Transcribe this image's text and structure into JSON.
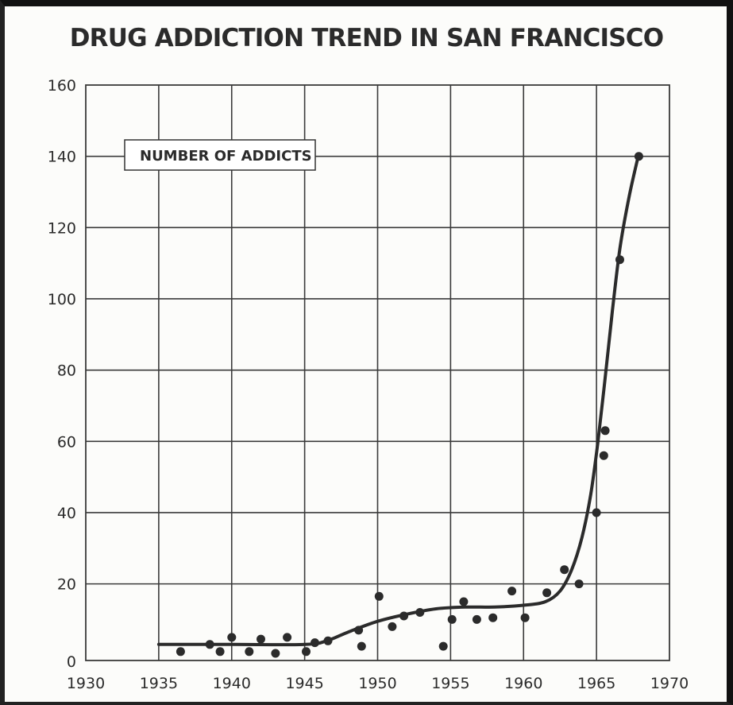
{
  "chart_data": {
    "type": "scatter",
    "title": "DRUG ADDICTION TREND IN SAN FRANCISCO",
    "legend_label": "NUMBER OF ADDICTS",
    "xlabel": "",
    "ylabel": "",
    "xlim": [
      1930,
      1970
    ],
    "ylim": [
      0,
      160
    ],
    "x_ticks": [
      1930,
      1935,
      1940,
      1945,
      1950,
      1955,
      1960,
      1965,
      1970
    ],
    "y_ticks": [
      0,
      20,
      40,
      60,
      80,
      100,
      120,
      140,
      160
    ],
    "grid": true,
    "points": [
      {
        "x": 1936.5,
        "y": 1
      },
      {
        "x": 1938.5,
        "y": 3
      },
      {
        "x": 1939.2,
        "y": 1
      },
      {
        "x": 1940.0,
        "y": 5
      },
      {
        "x": 1941.2,
        "y": 1
      },
      {
        "x": 1942.0,
        "y": 4.5
      },
      {
        "x": 1943.0,
        "y": 0.5
      },
      {
        "x": 1943.8,
        "y": 5
      },
      {
        "x": 1945.1,
        "y": 1
      },
      {
        "x": 1945.7,
        "y": 3.5
      },
      {
        "x": 1946.6,
        "y": 4
      },
      {
        "x": 1948.7,
        "y": 7
      },
      {
        "x": 1948.9,
        "y": 2.5
      },
      {
        "x": 1950.1,
        "y": 16.5
      },
      {
        "x": 1951.0,
        "y": 8
      },
      {
        "x": 1951.8,
        "y": 11
      },
      {
        "x": 1952.9,
        "y": 12
      },
      {
        "x": 1954.5,
        "y": 2.5
      },
      {
        "x": 1955.1,
        "y": 10
      },
      {
        "x": 1955.9,
        "y": 15
      },
      {
        "x": 1956.8,
        "y": 10
      },
      {
        "x": 1957.9,
        "y": 10.5
      },
      {
        "x": 1959.2,
        "y": 18
      },
      {
        "x": 1960.1,
        "y": 10.5
      },
      {
        "x": 1961.6,
        "y": 17.5
      },
      {
        "x": 1962.8,
        "y": 24
      },
      {
        "x": 1963.8,
        "y": 20
      },
      {
        "x": 1965.0,
        "y": 40
      },
      {
        "x": 1965.5,
        "y": 56
      },
      {
        "x": 1965.6,
        "y": 63
      },
      {
        "x": 1966.6,
        "y": 111
      },
      {
        "x": 1967.9,
        "y": 140
      }
    ],
    "trend_line": [
      {
        "x": 1935.0,
        "y": 3
      },
      {
        "x": 1940.0,
        "y": 3
      },
      {
        "x": 1945.0,
        "y": 3
      },
      {
        "x": 1946.5,
        "y": 4
      },
      {
        "x": 1948.0,
        "y": 6.5
      },
      {
        "x": 1950.0,
        "y": 9.5
      },
      {
        "x": 1952.0,
        "y": 11.5
      },
      {
        "x": 1954.0,
        "y": 13
      },
      {
        "x": 1956.0,
        "y": 13.5
      },
      {
        "x": 1958.0,
        "y": 13.5
      },
      {
        "x": 1960.0,
        "y": 14
      },
      {
        "x": 1961.5,
        "y": 15
      },
      {
        "x": 1962.5,
        "y": 18
      },
      {
        "x": 1963.3,
        "y": 24
      },
      {
        "x": 1964.0,
        "y": 33
      },
      {
        "x": 1964.6,
        "y": 45
      },
      {
        "x": 1965.1,
        "y": 60
      },
      {
        "x": 1965.6,
        "y": 78
      },
      {
        "x": 1966.1,
        "y": 97
      },
      {
        "x": 1966.6,
        "y": 114
      },
      {
        "x": 1967.2,
        "y": 128
      },
      {
        "x": 1967.8,
        "y": 139
      }
    ]
  },
  "colors": {
    "ink": "#2b2b2b",
    "grid": "#3a3a3a",
    "background": "#fcfcfa"
  }
}
